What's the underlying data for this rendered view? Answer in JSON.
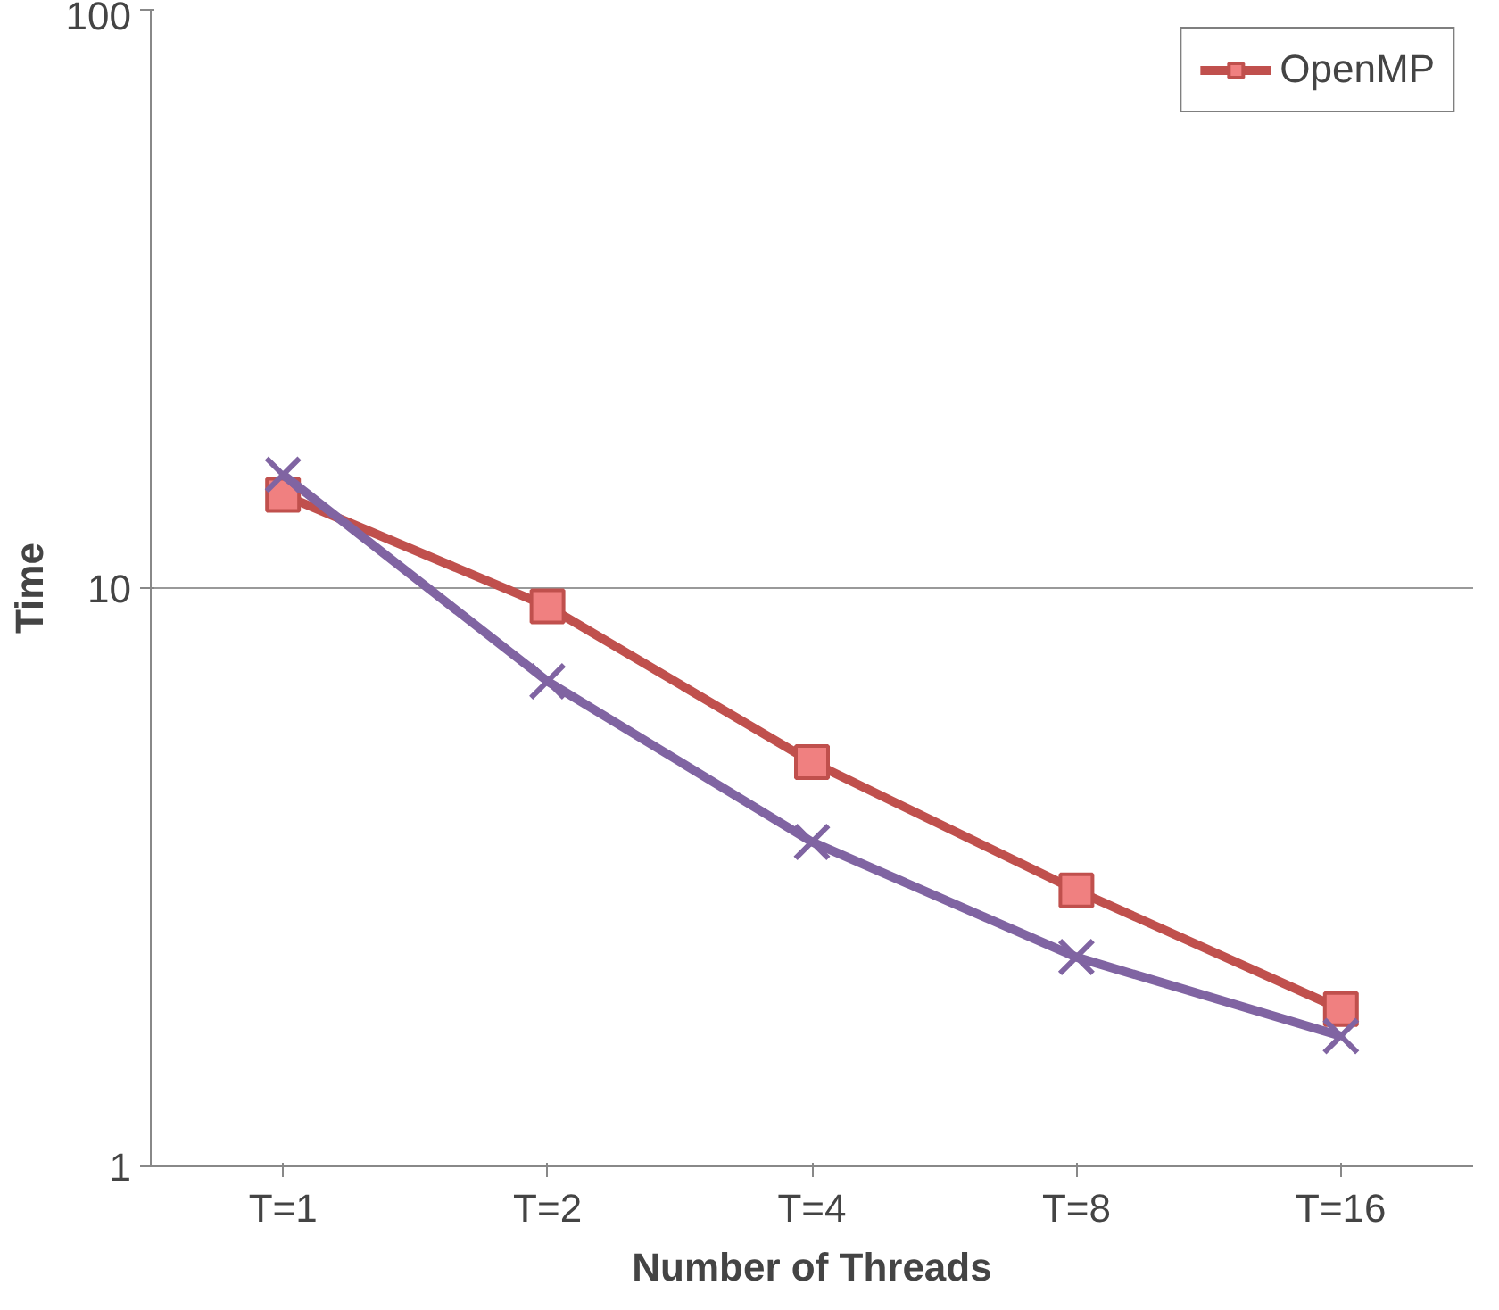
{
  "chart_data": {
    "type": "line",
    "xlabel": "Number of Threads",
    "ylabel": "Time",
    "categories": [
      "T=1",
      "T=2",
      "T=4",
      "T=8",
      "T=16"
    ],
    "series": [
      {
        "name": "OpenMP",
        "color": "#c0504d",
        "marker": "square",
        "values": [
          14.5,
          9.3,
          5.0,
          3.0,
          1.87
        ]
      },
      {
        "color": "#8064a2",
        "marker": "cross",
        "values": [
          15.7,
          6.9,
          3.64,
          2.3,
          1.68
        ]
      }
    ],
    "log": "y",
    "ylim": [
      1,
      100
    ],
    "yticks": [
      1,
      10,
      100
    ],
    "grid": "y",
    "legend": "top right"
  }
}
